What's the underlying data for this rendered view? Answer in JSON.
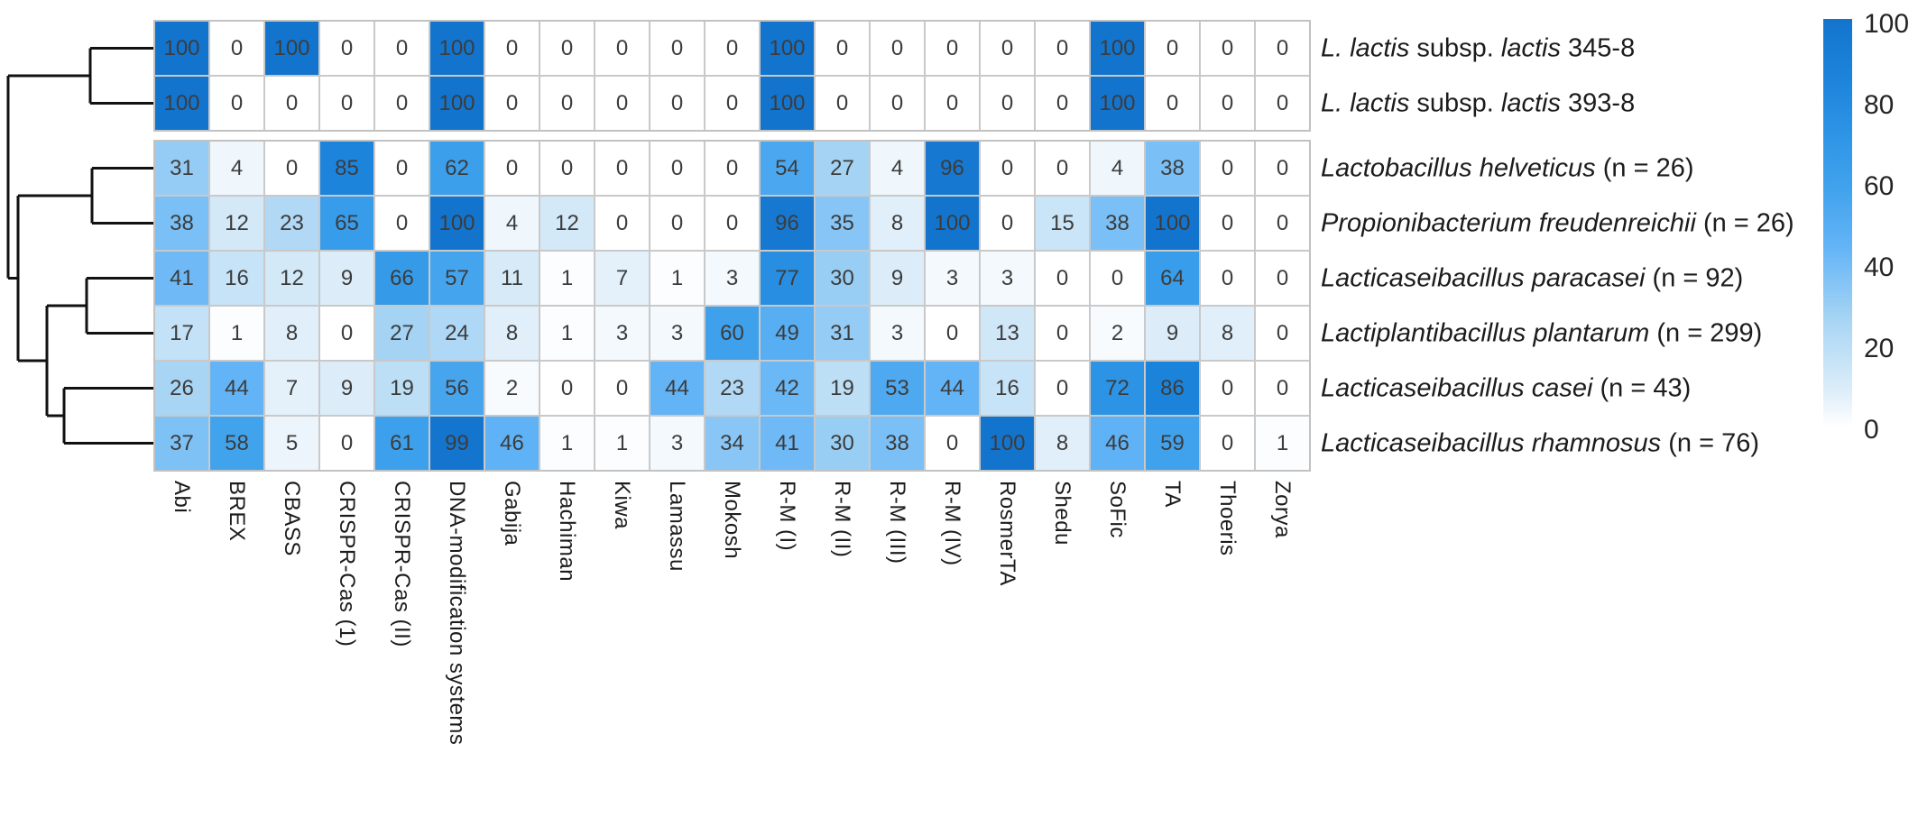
{
  "chart_data": {
    "type": "heatmap",
    "title": "",
    "legend_position": "right",
    "columns": [
      "Abi",
      "BREX",
      "CBASS",
      "CRISPR-Cas (1)",
      "CRISPR-Cas (II)",
      "DNA-modification systems",
      "Gabija",
      "Hachiman",
      "Kiwa",
      "Lamassu",
      "Mokosh",
      "R-M (I)",
      "R-M (II)",
      "R-M (III)",
      "R-M (IV)",
      "RosmerTA",
      "Shedu",
      "SoFic",
      "TA",
      "Thoeris",
      "Zorya"
    ],
    "rows": [
      {
        "group": 0,
        "label_segments": [
          {
            "text": "L. lactis",
            "italic": true
          },
          {
            "text": " subsp. ",
            "italic": false
          },
          {
            "text": "lactis",
            "italic": true
          },
          {
            "text": " 345-8",
            "italic": false
          }
        ],
        "values": [
          100,
          0,
          100,
          0,
          0,
          100,
          0,
          0,
          0,
          0,
          0,
          100,
          0,
          0,
          0,
          0,
          0,
          100,
          0,
          0,
          0
        ]
      },
      {
        "group": 0,
        "label_segments": [
          {
            "text": "L. lactis",
            "italic": true
          },
          {
            "text": " subsp. ",
            "italic": false
          },
          {
            "text": "lactis",
            "italic": true
          },
          {
            "text": " 393-8",
            "italic": false
          }
        ],
        "values": [
          100,
          0,
          0,
          0,
          0,
          100,
          0,
          0,
          0,
          0,
          0,
          100,
          0,
          0,
          0,
          0,
          0,
          100,
          0,
          0,
          0
        ]
      },
      {
        "group": 1,
        "label_segments": [
          {
            "text": "Lactobacillus helveticus",
            "italic": true
          },
          {
            "text": " (n = 26)",
            "italic": false
          }
        ],
        "values": [
          31,
          4,
          0,
          85,
          0,
          62,
          0,
          0,
          0,
          0,
          0,
          54,
          27,
          4,
          96,
          0,
          0,
          4,
          38,
          0,
          0
        ]
      },
      {
        "group": 1,
        "label_segments": [
          {
            "text": "Propionibacterium freudenreichii",
            "italic": true
          },
          {
            "text": " (n = 26)",
            "italic": false
          }
        ],
        "values": [
          38,
          12,
          23,
          65,
          0,
          100,
          4,
          12,
          0,
          0,
          0,
          96,
          35,
          8,
          100,
          0,
          15,
          38,
          100,
          0,
          0
        ]
      },
      {
        "group": 1,
        "label_segments": [
          {
            "text": "Lacticaseibacillus paracasei",
            "italic": true
          },
          {
            "text": " (n = 92)",
            "italic": false
          }
        ],
        "values": [
          41,
          16,
          12,
          9,
          66,
          57,
          11,
          1,
          7,
          1,
          3,
          77,
          30,
          9,
          3,
          3,
          0,
          0,
          64,
          0,
          0
        ]
      },
      {
        "group": 1,
        "label_segments": [
          {
            "text": "Lactiplantibacillus plantarum",
            "italic": true
          },
          {
            "text": " (n = 299)",
            "italic": false
          }
        ],
        "values": [
          17,
          1,
          8,
          0,
          27,
          24,
          8,
          1,
          3,
          3,
          60,
          49,
          31,
          3,
          0,
          13,
          0,
          2,
          9,
          8,
          0
        ]
      },
      {
        "group": 1,
        "label_segments": [
          {
            "text": "Lacticaseibacillus casei",
            "italic": true
          },
          {
            "text": " (n = 43)",
            "italic": false
          }
        ],
        "values": [
          26,
          44,
          7,
          9,
          19,
          56,
          2,
          0,
          0,
          44,
          23,
          42,
          19,
          53,
          44,
          16,
          0,
          72,
          86,
          0,
          0
        ]
      },
      {
        "group": 1,
        "label_segments": [
          {
            "text": "Lacticaseibacillus rhamnosus",
            "italic": true
          },
          {
            "text": " (n = 76)",
            "italic": false
          }
        ],
        "values": [
          37,
          58,
          5,
          0,
          61,
          99,
          46,
          1,
          1,
          3,
          34,
          41,
          30,
          38,
          0,
          100,
          8,
          46,
          59,
          0,
          1
        ]
      }
    ],
    "value_min": 0,
    "value_max": 100,
    "grid_on": true,
    "colormap": {
      "stops": [
        {
          "value": 0,
          "color": "#ffffff"
        },
        {
          "value": 9,
          "color": "#dcedf9"
        },
        {
          "value": 26,
          "color": "#a8d5f4"
        },
        {
          "value": 44,
          "color": "#63b4f6"
        },
        {
          "value": 58,
          "color": "#42a3ed"
        },
        {
          "value": 66,
          "color": "#359be9"
        },
        {
          "value": 85,
          "color": "#1d84dc"
        },
        {
          "value": 100,
          "color": "#1374cd"
        }
      ]
    },
    "colorbar": {
      "ticks": [
        "100",
        "80",
        "60",
        "40",
        "20",
        "0"
      ],
      "min": 0,
      "max": 100
    },
    "dendrogram": {
      "color": "#111111",
      "segments": [
        [
          100,
          53.5,
          170,
          53.5
        ],
        [
          100,
          114.5,
          170,
          114.5
        ],
        [
          100,
          53.5,
          100,
          114.5
        ],
        [
          9,
          84,
          100,
          84
        ],
        [
          102,
          186.5,
          170,
          186.5
        ],
        [
          102,
          247.5,
          170,
          247.5
        ],
        [
          102,
          186.5,
          102,
          247.5
        ],
        [
          20,
          217,
          102,
          217
        ],
        [
          96,
          308.5,
          170,
          308.5
        ],
        [
          96,
          369.5,
          170,
          369.5
        ],
        [
          96,
          308.5,
          96,
          369.5
        ],
        [
          52,
          339,
          96,
          339
        ],
        [
          71,
          430.5,
          170,
          430.5
        ],
        [
          71,
          491.5,
          170,
          491.5
        ],
        [
          71,
          430.5,
          71,
          491.5
        ],
        [
          52,
          461,
          71,
          461
        ],
        [
          52,
          339,
          52,
          461
        ],
        [
          20,
          400,
          52,
          400
        ],
        [
          20,
          217,
          20,
          400
        ],
        [
          9,
          308.5,
          20,
          308.5
        ],
        [
          9,
          84,
          9,
          308.5
        ]
      ]
    }
  }
}
